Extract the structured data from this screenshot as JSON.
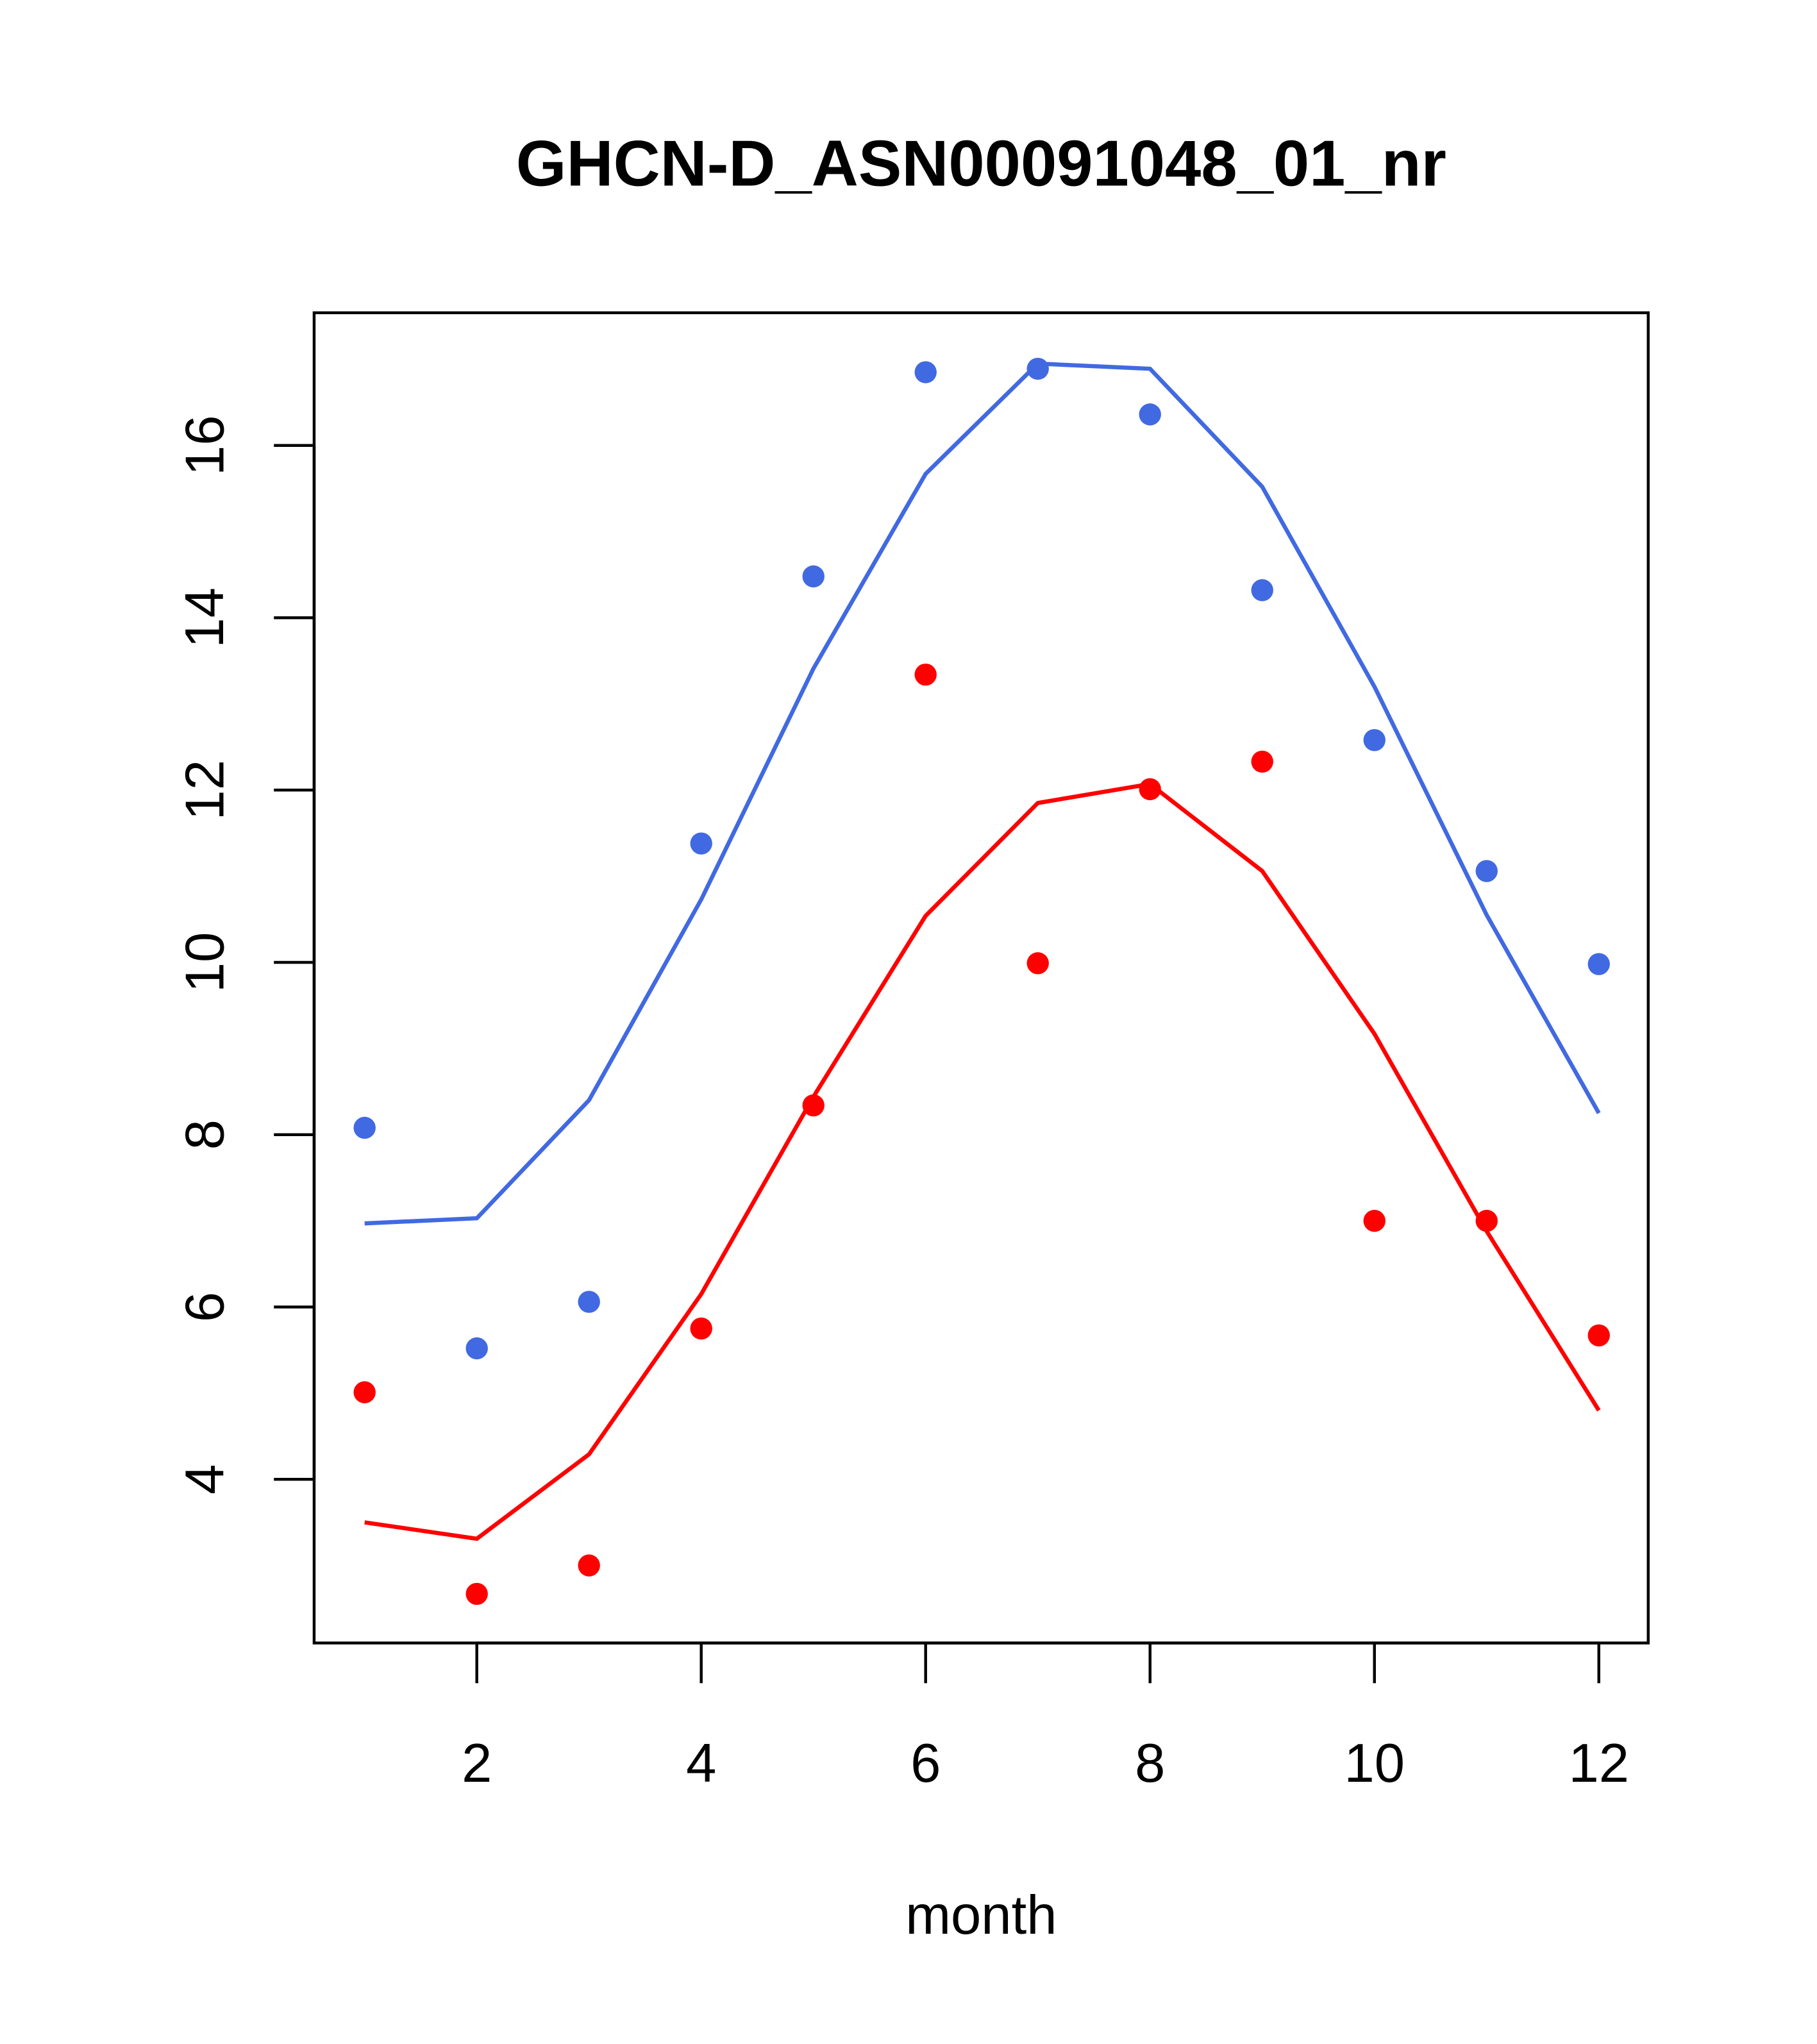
{
  "chart_data": {
    "type": "line",
    "title": "GHCN-D_ASN00091048_01_nr",
    "xlabel": "month",
    "ylabel": "",
    "xlim": [
      0.55,
      12.44
    ],
    "ylim": [
      2.1,
      17.54
    ],
    "xticks": [
      2,
      4,
      6,
      8,
      10,
      12
    ],
    "yticks": [
      4,
      6,
      8,
      10,
      12,
      14,
      16
    ],
    "grid": false,
    "legend": "none",
    "x": [
      1,
      2,
      3,
      4,
      5,
      6,
      7,
      8,
      9,
      10,
      11,
      12
    ],
    "series": [
      {
        "name": "blue-points",
        "kind": "points",
        "color": "#4169E1",
        "values": [
          8.08,
          5.52,
          6.06,
          11.38,
          14.48,
          16.85,
          16.89,
          16.36,
          14.32,
          12.58,
          11.06,
          9.98
        ]
      },
      {
        "name": "blue-line",
        "kind": "line",
        "color": "#4169E1",
        "values": [
          6.97,
          7.03,
          8.4,
          10.73,
          13.41,
          15.67,
          16.95,
          16.89,
          15.52,
          13.2,
          10.55,
          8.25
        ]
      },
      {
        "name": "red-points",
        "kind": "points",
        "color": "#FF0000",
        "values": [
          5.01,
          2.67,
          3.0,
          5.75,
          8.34,
          13.34,
          9.99,
          12.01,
          12.33,
          7.0,
          7.0,
          5.67
        ]
      },
      {
        "name": "red-line",
        "kind": "line",
        "color": "#FF0000",
        "values": [
          3.5,
          3.31,
          4.29,
          6.15,
          8.44,
          10.54,
          11.85,
          12.07,
          11.06,
          9.17,
          6.88,
          4.8
        ]
      }
    ]
  }
}
